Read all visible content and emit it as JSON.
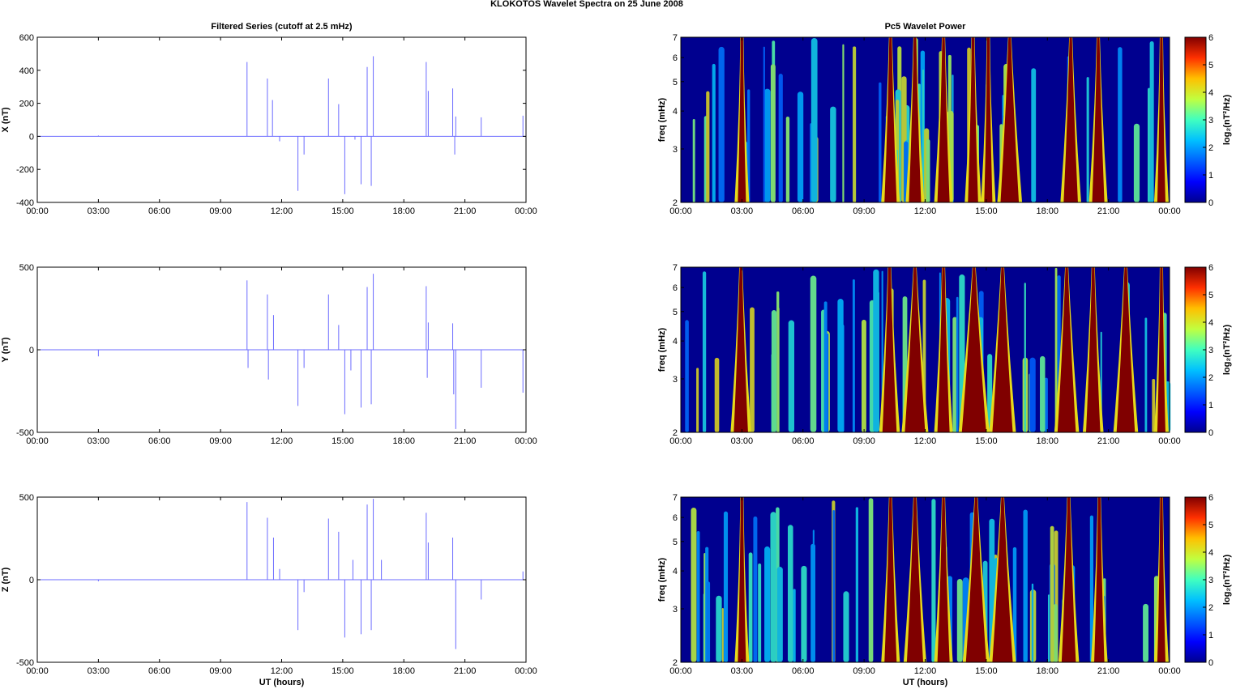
{
  "figure": {
    "title": "KLOKOTOS Wavelet Spectra on 25 June      2008"
  },
  "colors": {
    "series_line": "#6b6bff",
    "axes": "#000000",
    "colormap": [
      "#00008f",
      "#0000ff",
      "#0080ff",
      "#00ffff",
      "#80ff80",
      "#ffff00",
      "#ff8000",
      "#ff0000",
      "#800000"
    ]
  },
  "chart_data": [
    {
      "type": "line",
      "panel": "X",
      "title": "Filtered Series (cutoff at 2.5 mHz)",
      "xlabel": "",
      "ylabel": "X (nT)",
      "xlim": [
        0,
        24
      ],
      "ylim": [
        -400,
        600
      ],
      "yticks": [
        600,
        400,
        200,
        0,
        -200,
        -400
      ],
      "xticks": [
        "00:00",
        "03:00",
        "06:00",
        "09:00",
        "12:00",
        "15:00",
        "18:00",
        "21:00",
        "00:00"
      ],
      "grid": false,
      "spikes": [
        {
          "x": 3.0,
          "y": 5
        },
        {
          "x": 10.3,
          "y": 450
        },
        {
          "x": 11.3,
          "y": 350
        },
        {
          "x": 11.55,
          "y": 220
        },
        {
          "x": 11.9,
          "y": -30
        },
        {
          "x": 12.8,
          "y": -330
        },
        {
          "x": 13.1,
          "y": -110
        },
        {
          "x": 14.3,
          "y": 350
        },
        {
          "x": 14.8,
          "y": 195
        },
        {
          "x": 15.1,
          "y": -350
        },
        {
          "x": 15.6,
          "y": -20
        },
        {
          "x": 15.9,
          "y": -290
        },
        {
          "x": 16.2,
          "y": 420
        },
        {
          "x": 16.4,
          "y": -300
        },
        {
          "x": 16.5,
          "y": 485
        },
        {
          "x": 19.1,
          "y": 450
        },
        {
          "x": 19.2,
          "y": 275
        },
        {
          "x": 20.4,
          "y": 290
        },
        {
          "x": 20.5,
          "y": -110
        },
        {
          "x": 20.55,
          "y": 120
        },
        {
          "x": 21.8,
          "y": 115
        },
        {
          "x": 23.85,
          "y": 125
        }
      ]
    },
    {
      "type": "line",
      "panel": "Y",
      "title": "",
      "xlabel": "",
      "ylabel": "Y (nT)",
      "xlim": [
        0,
        24
      ],
      "ylim": [
        -500,
        500
      ],
      "yticks": [
        500,
        0,
        -500
      ],
      "xticks": [
        "00:00",
        "03:00",
        "06:00",
        "09:00",
        "12:00",
        "15:00",
        "18:00",
        "21:00",
        "00:00"
      ],
      "grid": false,
      "spikes": [
        {
          "x": 3.0,
          "y": -40
        },
        {
          "x": 10.3,
          "y": 420
        },
        {
          "x": 10.35,
          "y": -110
        },
        {
          "x": 11.3,
          "y": 335
        },
        {
          "x": 11.35,
          "y": -180
        },
        {
          "x": 11.6,
          "y": 210
        },
        {
          "x": 12.8,
          "y": -340
        },
        {
          "x": 13.1,
          "y": -110
        },
        {
          "x": 14.3,
          "y": 335
        },
        {
          "x": 14.8,
          "y": 150
        },
        {
          "x": 15.1,
          "y": -390
        },
        {
          "x": 15.4,
          "y": -125
        },
        {
          "x": 15.9,
          "y": -350
        },
        {
          "x": 16.2,
          "y": 380
        },
        {
          "x": 16.4,
          "y": -330
        },
        {
          "x": 16.5,
          "y": 460
        },
        {
          "x": 19.1,
          "y": 385
        },
        {
          "x": 19.15,
          "y": -170
        },
        {
          "x": 19.2,
          "y": 165
        },
        {
          "x": 20.4,
          "y": 160
        },
        {
          "x": 20.45,
          "y": -270
        },
        {
          "x": 20.55,
          "y": -480
        },
        {
          "x": 21.8,
          "y": -230
        },
        {
          "x": 23.85,
          "y": -260
        }
      ]
    },
    {
      "type": "line",
      "panel": "Z",
      "title": "",
      "xlabel": "UT (hours)",
      "ylabel": "Z (nT)",
      "xlim": [
        0,
        24
      ],
      "ylim": [
        -500,
        500
      ],
      "yticks": [
        500,
        0,
        -500
      ],
      "xticks": [
        "00:00",
        "03:00",
        "06:00",
        "09:00",
        "12:00",
        "15:00",
        "18:00",
        "21:00",
        "00:00"
      ],
      "grid": false,
      "spikes": [
        {
          "x": 3.0,
          "y": -10
        },
        {
          "x": 10.3,
          "y": 470
        },
        {
          "x": 11.3,
          "y": 375
        },
        {
          "x": 11.6,
          "y": 255
        },
        {
          "x": 11.9,
          "y": 65
        },
        {
          "x": 12.8,
          "y": -305
        },
        {
          "x": 13.1,
          "y": -75
        },
        {
          "x": 14.3,
          "y": 370
        },
        {
          "x": 14.8,
          "y": 290
        },
        {
          "x": 15.1,
          "y": -350
        },
        {
          "x": 15.5,
          "y": 120
        },
        {
          "x": 15.9,
          "y": -330
        },
        {
          "x": 16.2,
          "y": 455
        },
        {
          "x": 16.4,
          "y": -305
        },
        {
          "x": 16.5,
          "y": 490
        },
        {
          "x": 16.9,
          "y": 120
        },
        {
          "x": 19.1,
          "y": 405
        },
        {
          "x": 19.2,
          "y": 225
        },
        {
          "x": 20.4,
          "y": 255
        },
        {
          "x": 20.55,
          "y": -420
        },
        {
          "x": 21.8,
          "y": -120
        },
        {
          "x": 23.85,
          "y": 50
        }
      ]
    },
    {
      "type": "heatmap",
      "panel": "X",
      "title": "Pc5 Wavelet Power",
      "xlabel": "",
      "ylabel": "freq (mHz)",
      "xlim": [
        0,
        24
      ],
      "ylim": [
        2,
        7
      ],
      "yscale": "log",
      "yticks": [
        2,
        3,
        4,
        5,
        6,
        7
      ],
      "xticks": [
        "00:00",
        "03:00",
        "06:00",
        "09:00",
        "12:00",
        "15:00",
        "18:00",
        "21:00",
        "00:00"
      ],
      "colorbar": {
        "label": "log₂(nT²/Hz)",
        "ticks": [
          0,
          1,
          2,
          3,
          4,
          5,
          6
        ],
        "range": [
          0,
          6
        ]
      },
      "saturated_bands": [
        {
          "start": 2.8,
          "end": 3.2
        },
        {
          "start": 10.0,
          "end": 10.6
        },
        {
          "start": 11.2,
          "end": 11.8
        },
        {
          "start": 12.6,
          "end": 13.2
        },
        {
          "start": 14.1,
          "end": 14.6
        },
        {
          "start": 14.9,
          "end": 15.3
        },
        {
          "start": 15.7,
          "end": 16.6
        },
        {
          "start": 18.8,
          "end": 19.5
        },
        {
          "start": 20.2,
          "end": 20.8
        },
        {
          "start": 23.4,
          "end": 23.8
        }
      ]
    },
    {
      "type": "heatmap",
      "panel": "Y",
      "title": "",
      "xlabel": "",
      "ylabel": "freq (mHz)",
      "xlim": [
        0,
        24
      ],
      "ylim": [
        2,
        7
      ],
      "yscale": "log",
      "yticks": [
        2,
        3,
        4,
        5,
        6,
        7
      ],
      "xticks": [
        "00:00",
        "03:00",
        "06:00",
        "09:00",
        "12:00",
        "15:00",
        "18:00",
        "21:00",
        "00:00"
      ],
      "colorbar": {
        "label": "log₂(nT²/Hz)",
        "ticks": [
          0,
          1,
          2,
          3,
          4,
          5,
          6
        ],
        "range": [
          0,
          6
        ]
      },
      "saturated_bands": [
        {
          "start": 2.6,
          "end": 3.3
        },
        {
          "start": 9.9,
          "end": 10.6
        },
        {
          "start": 11.0,
          "end": 12.0
        },
        {
          "start": 12.6,
          "end": 13.2
        },
        {
          "start": 13.8,
          "end": 15.0
        },
        {
          "start": 15.3,
          "end": 16.3
        },
        {
          "start": 18.5,
          "end": 19.4
        },
        {
          "start": 19.9,
          "end": 20.6
        },
        {
          "start": 21.4,
          "end": 22.3
        },
        {
          "start": 23.4,
          "end": 23.8
        }
      ]
    },
    {
      "type": "heatmap",
      "panel": "Z",
      "title": "",
      "xlabel": "UT (hours)",
      "ylabel": "freq (mHz)",
      "xlim": [
        0,
        24
      ],
      "ylim": [
        2,
        7
      ],
      "yscale": "log",
      "yticks": [
        2,
        3,
        4,
        5,
        6,
        7
      ],
      "xticks": [
        "00:00",
        "03:00",
        "06:00",
        "09:00",
        "12:00",
        "15:00",
        "18:00",
        "21:00",
        "00:00"
      ],
      "colorbar": {
        "label": "log₂(nT²/Hz)",
        "ticks": [
          0,
          1,
          2,
          3,
          4,
          5,
          6
        ],
        "range": [
          0,
          6
        ]
      },
      "saturated_bands": [
        {
          "start": 2.8,
          "end": 3.2
        },
        {
          "start": 10.0,
          "end": 10.6
        },
        {
          "start": 11.1,
          "end": 11.9
        },
        {
          "start": 12.6,
          "end": 13.2
        },
        {
          "start": 14.0,
          "end": 15.0
        },
        {
          "start": 15.3,
          "end": 16.3
        },
        {
          "start": 18.7,
          "end": 19.4
        },
        {
          "start": 20.3,
          "end": 20.8
        },
        {
          "start": 23.4,
          "end": 23.8
        }
      ]
    }
  ]
}
